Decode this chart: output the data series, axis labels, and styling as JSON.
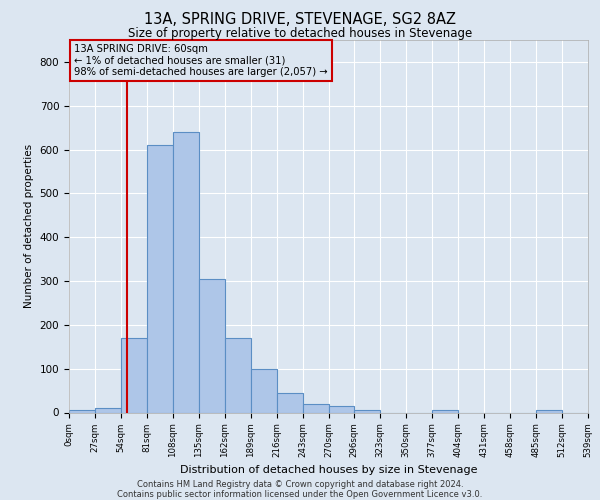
{
  "title": "13A, SPRING DRIVE, STEVENAGE, SG2 8AZ",
  "subtitle": "Size of property relative to detached houses in Stevenage",
  "xlabel": "Distribution of detached houses by size in Stevenage",
  "ylabel": "Number of detached properties",
  "footnote1": "Contains HM Land Registry data © Crown copyright and database right 2024.",
  "footnote2": "Contains public sector information licensed under the Open Government Licence v3.0.",
  "annotation_line1": "13A SPRING DRIVE: 60sqm",
  "annotation_line2": "← 1% of detached houses are smaller (31)",
  "annotation_line3": "98% of semi-detached houses are larger (2,057) →",
  "property_size": 60,
  "bar_edges": [
    0,
    27,
    54,
    81,
    108,
    135,
    162,
    189,
    216,
    243,
    270,
    296,
    323,
    350,
    377,
    404,
    431,
    458,
    485,
    512,
    539
  ],
  "bar_heights": [
    5,
    10,
    170,
    610,
    640,
    305,
    170,
    100,
    45,
    20,
    15,
    5,
    0,
    0,
    5,
    0,
    0,
    0,
    5,
    0
  ],
  "bar_color": "#aec6e8",
  "bar_edge_color": "#5b8ec4",
  "red_line_color": "#cc0000",
  "annotation_box_color": "#cc0000",
  "background_color": "#dce6f1",
  "grid_color": "#ffffff",
  "ylim": [
    0,
    850
  ],
  "yticks": [
    0,
    100,
    200,
    300,
    400,
    500,
    600,
    700,
    800
  ]
}
